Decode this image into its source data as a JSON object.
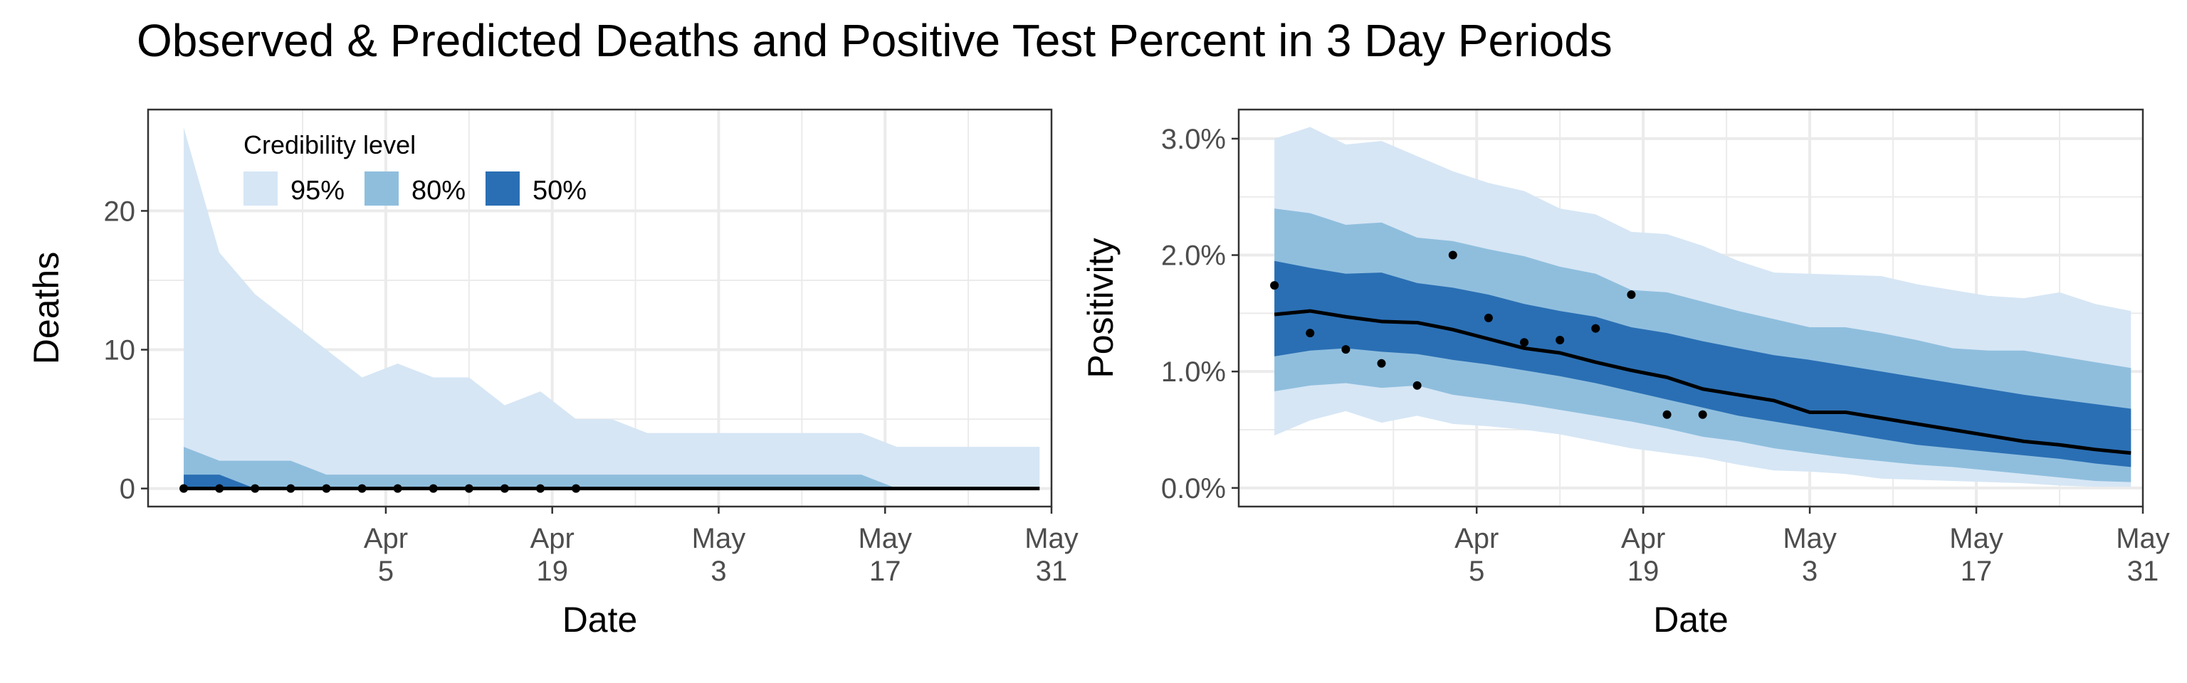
{
  "title": "Observed & Predicted Deaths and Positive Test Percent in 3 Day Periods",
  "colors": {
    "band95": "#d6e6f5",
    "band80": "#8fbedd",
    "band50": "#2a6fb4",
    "median": "#000000",
    "points": "#000000"
  },
  "legend": {
    "title": "Credibility level",
    "items": [
      {
        "label": "95%",
        "color": "#d6e6f5"
      },
      {
        "label": "80%",
        "color": "#8fbedd"
      },
      {
        "label": "50%",
        "color": "#2a6fb4"
      }
    ]
  },
  "chart_data": [
    {
      "type": "area",
      "ylabel": "Deaths",
      "xlabel": "Date",
      "xlim": [
        "2020-03-16",
        "2020-05-31"
      ],
      "ylim": [
        -1.3,
        27.3
      ],
      "yticks": [
        {
          "value": 0,
          "label": "0"
        },
        {
          "value": 10,
          "label": "10"
        },
        {
          "value": 20,
          "label": "20"
        }
      ],
      "xticks": [
        {
          "date": "2020-04-05",
          "line1": "Apr",
          "line2": "5"
        },
        {
          "date": "2020-04-19",
          "line1": "Apr",
          "line2": "19"
        },
        {
          "date": "2020-05-03",
          "line1": "May",
          "line2": "3"
        },
        {
          "date": "2020-05-17",
          "line1": "May",
          "line2": "17"
        },
        {
          "date": "2020-05-31",
          "line1": "May",
          "line2": "31"
        }
      ],
      "grid": true,
      "legend_position": "top-left",
      "dates": [
        "2020-03-19",
        "2020-03-22",
        "2020-03-25",
        "2020-03-28",
        "2020-03-31",
        "2020-04-03",
        "2020-04-06",
        "2020-04-09",
        "2020-04-12",
        "2020-04-15",
        "2020-04-18",
        "2020-04-21",
        "2020-04-24",
        "2020-04-27",
        "2020-04-30",
        "2020-05-03",
        "2020-05-06",
        "2020-05-09",
        "2020-05-12",
        "2020-05-15",
        "2020-05-18",
        "2020-05-21",
        "2020-05-24",
        "2020-05-27",
        "2020-05-30"
      ],
      "series": [
        {
          "band": "95%",
          "lower": [
            0,
            0,
            0,
            0,
            0,
            0,
            0,
            0,
            0,
            0,
            0,
            0,
            0,
            0,
            0,
            0,
            0,
            0,
            0,
            0,
            0,
            0,
            0,
            0,
            0
          ],
          "upper": [
            26,
            17,
            14,
            12,
            10,
            8,
            9,
            8,
            8,
            6,
            7,
            5,
            5,
            4,
            4,
            4,
            4,
            4,
            4,
            4,
            3,
            3,
            3,
            3,
            3
          ]
        },
        {
          "band": "80%",
          "lower": [
            0,
            0,
            0,
            0,
            0,
            0,
            0,
            0,
            0,
            0,
            0,
            0,
            0,
            0,
            0,
            0,
            0,
            0,
            0,
            0,
            0,
            0,
            0,
            0,
            0
          ],
          "upper": [
            3,
            2,
            2,
            2,
            1,
            1,
            1,
            1,
            1,
            1,
            1,
            1,
            1,
            1,
            1,
            1,
            1,
            1,
            1,
            1,
            0,
            0,
            0,
            0,
            0
          ]
        },
        {
          "band": "50%",
          "lower": [
            0,
            0,
            0,
            0,
            0,
            0,
            0,
            0,
            0,
            0,
            0,
            0,
            0,
            0,
            0,
            0,
            0,
            0,
            0,
            0,
            0,
            0,
            0,
            0,
            0
          ],
          "upper": [
            1,
            1,
            0,
            0,
            0,
            0,
            0,
            0,
            0,
            0,
            0,
            0,
            0,
            0,
            0,
            0,
            0,
            0,
            0,
            0,
            0,
            0,
            0,
            0,
            0
          ]
        },
        {
          "type": "line",
          "role": "median",
          "values": [
            0,
            0,
            0,
            0,
            0,
            0,
            0,
            0,
            0,
            0,
            0,
            0,
            0,
            0,
            0,
            0,
            0,
            0,
            0,
            0,
            0,
            0,
            0,
            0,
            0
          ]
        }
      ],
      "observed": {
        "dates": [
          "2020-03-19",
          "2020-03-22",
          "2020-03-25",
          "2020-03-28",
          "2020-03-31",
          "2020-04-03",
          "2020-04-06",
          "2020-04-09",
          "2020-04-12",
          "2020-04-15",
          "2020-04-18",
          "2020-04-21"
        ],
        "values": [
          0,
          0,
          0,
          0,
          0,
          0,
          0,
          0,
          0,
          0,
          0,
          0
        ]
      }
    },
    {
      "type": "area",
      "ylabel": "Positivity",
      "xlabel": "Date",
      "xlim": [
        "2020-03-16",
        "2020-05-31"
      ],
      "ylim": [
        -0.0016,
        0.0325
      ],
      "yticks": [
        {
          "value": 0,
          "label": "0.0%"
        },
        {
          "value": 0.01,
          "label": "1.0%"
        },
        {
          "value": 0.02,
          "label": "2.0%"
        },
        {
          "value": 0.03,
          "label": "3.0%"
        }
      ],
      "xticks": [
        {
          "date": "2020-04-05",
          "line1": "Apr",
          "line2": "5"
        },
        {
          "date": "2020-04-19",
          "line1": "Apr",
          "line2": "19"
        },
        {
          "date": "2020-05-03",
          "line1": "May",
          "line2": "3"
        },
        {
          "date": "2020-05-17",
          "line1": "May",
          "line2": "17"
        },
        {
          "date": "2020-05-31",
          "line1": "May",
          "line2": "31"
        }
      ],
      "grid": true,
      "dates": [
        "2020-03-19",
        "2020-03-22",
        "2020-03-25",
        "2020-03-28",
        "2020-03-31",
        "2020-04-03",
        "2020-04-06",
        "2020-04-09",
        "2020-04-12",
        "2020-04-15",
        "2020-04-18",
        "2020-04-21",
        "2020-04-24",
        "2020-04-27",
        "2020-04-30",
        "2020-05-03",
        "2020-05-06",
        "2020-05-09",
        "2020-05-12",
        "2020-05-15",
        "2020-05-18",
        "2020-05-21",
        "2020-05-24",
        "2020-05-27",
        "2020-05-30"
      ],
      "series": [
        {
          "band": "95%",
          "lower": [
            0.0045,
            0.0058,
            0.0066,
            0.0056,
            0.0062,
            0.0055,
            0.0053,
            0.005,
            0.0046,
            0.004,
            0.0034,
            0.003,
            0.0026,
            0.002,
            0.0015,
            0.0014,
            0.0012,
            0.0008,
            0.0007,
            0.0006,
            0.0005,
            0.0004,
            0.0002,
            0.0001,
            0.0001
          ],
          "upper": [
            0.03,
            0.031,
            0.0295,
            0.0298,
            0.0285,
            0.0272,
            0.0262,
            0.0255,
            0.024,
            0.0235,
            0.022,
            0.0218,
            0.0208,
            0.0195,
            0.0185,
            0.0184,
            0.0183,
            0.0182,
            0.0175,
            0.017,
            0.0165,
            0.0163,
            0.0168,
            0.0158,
            0.0152
          ]
        },
        {
          "band": "80%",
          "lower": [
            0.0083,
            0.0088,
            0.009,
            0.0086,
            0.0088,
            0.008,
            0.0076,
            0.0072,
            0.0067,
            0.0062,
            0.0057,
            0.0051,
            0.0044,
            0.004,
            0.0034,
            0.003,
            0.0026,
            0.0023,
            0.002,
            0.0018,
            0.0015,
            0.0012,
            0.0009,
            0.0006,
            0.0005
          ],
          "upper": [
            0.024,
            0.0236,
            0.0226,
            0.0228,
            0.0215,
            0.0212,
            0.0205,
            0.0199,
            0.019,
            0.0184,
            0.017,
            0.0168,
            0.016,
            0.0152,
            0.0145,
            0.0138,
            0.0138,
            0.0133,
            0.0127,
            0.012,
            0.0118,
            0.0118,
            0.0113,
            0.0108,
            0.0103
          ]
        },
        {
          "band": "50%",
          "lower": [
            0.0113,
            0.0118,
            0.012,
            0.0117,
            0.0115,
            0.011,
            0.0106,
            0.0101,
            0.0096,
            0.009,
            0.0083,
            0.0076,
            0.0069,
            0.0062,
            0.0057,
            0.0052,
            0.0047,
            0.0042,
            0.0037,
            0.0034,
            0.0031,
            0.0028,
            0.0025,
            0.0021,
            0.0018
          ],
          "upper": [
            0.0195,
            0.0189,
            0.0184,
            0.0185,
            0.0176,
            0.0172,
            0.0166,
            0.0158,
            0.0152,
            0.0147,
            0.0138,
            0.0133,
            0.0126,
            0.012,
            0.0114,
            0.011,
            0.0105,
            0.01,
            0.0095,
            0.009,
            0.0085,
            0.008,
            0.0076,
            0.0072,
            0.0068
          ]
        },
        {
          "type": "line",
          "role": "median",
          "values": [
            0.0149,
            0.0152,
            0.0147,
            0.0143,
            0.0142,
            0.0136,
            0.0128,
            0.012,
            0.0116,
            0.0108,
            0.0101,
            0.0095,
            0.0085,
            0.008,
            0.0075,
            0.0065,
            0.0065,
            0.006,
            0.0055,
            0.005,
            0.0045,
            0.004,
            0.0037,
            0.0033,
            0.003
          ]
        }
      ],
      "observed": {
        "dates": [
          "2020-03-19",
          "2020-03-22",
          "2020-03-25",
          "2020-03-28",
          "2020-03-31",
          "2020-04-03",
          "2020-04-06",
          "2020-04-09",
          "2020-04-12",
          "2020-04-15",
          "2020-04-18",
          "2020-04-21",
          "2020-04-24"
        ],
        "values": [
          0.0174,
          0.0133,
          0.0119,
          0.0107,
          0.0088,
          0.02,
          0.0146,
          0.0125,
          0.0127,
          0.0137,
          0.0166,
          0.0063,
          0.0063
        ]
      }
    }
  ]
}
